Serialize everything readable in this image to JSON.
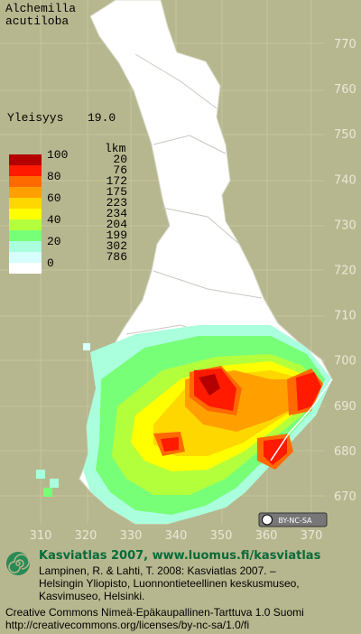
{
  "header": {
    "species": [
      "Alchemilla",
      "acutiloba"
    ],
    "frequency_label": "Yleisyys",
    "frequency_value": "19.0"
  },
  "legend": {
    "count_title": "lkm",
    "levels": [
      "100",
      "80",
      "60",
      "40",
      "20",
      "0"
    ],
    "colors": [
      "#b40000",
      "#ff1a00",
      "#ff6a00",
      "#ffa000",
      "#ffd700",
      "#ffff00",
      "#b4ff3c",
      "#78ff78",
      "#aaffdd",
      "#d8ffff",
      "#ffffff"
    ],
    "counts": [
      "20",
      "76",
      "172",
      "175",
      "223",
      "234",
      "204",
      "199",
      "302",
      "786"
    ]
  },
  "grid": {
    "northing": [
      "770",
      "760",
      "750",
      "740",
      "730",
      "720",
      "710",
      "700",
      "690",
      "680",
      "670"
    ],
    "easting": [
      "310",
      "320",
      "330",
      "340",
      "350",
      "360",
      "370"
    ]
  },
  "license_badge": "BY-NC-SA",
  "footer": {
    "title": "Kasviatlas 2007, www.luomus.fi/kasviatlas",
    "citation": [
      "Lampinen, R. & Lahti, T. 2008: Kasviatlas 2007. –",
      "Helsingin Yliopisto, Luonnontieteellinen keskusmuseo,",
      "Kasvimuseo, Helsinki."
    ],
    "license": [
      "Creative Commons Nimeä-Epäkaupallinen-Tarttuva 1.0 Suomi",
      "http://creativecommons.org/licenses/by-nc-sa/1.0/fi"
    ]
  }
}
